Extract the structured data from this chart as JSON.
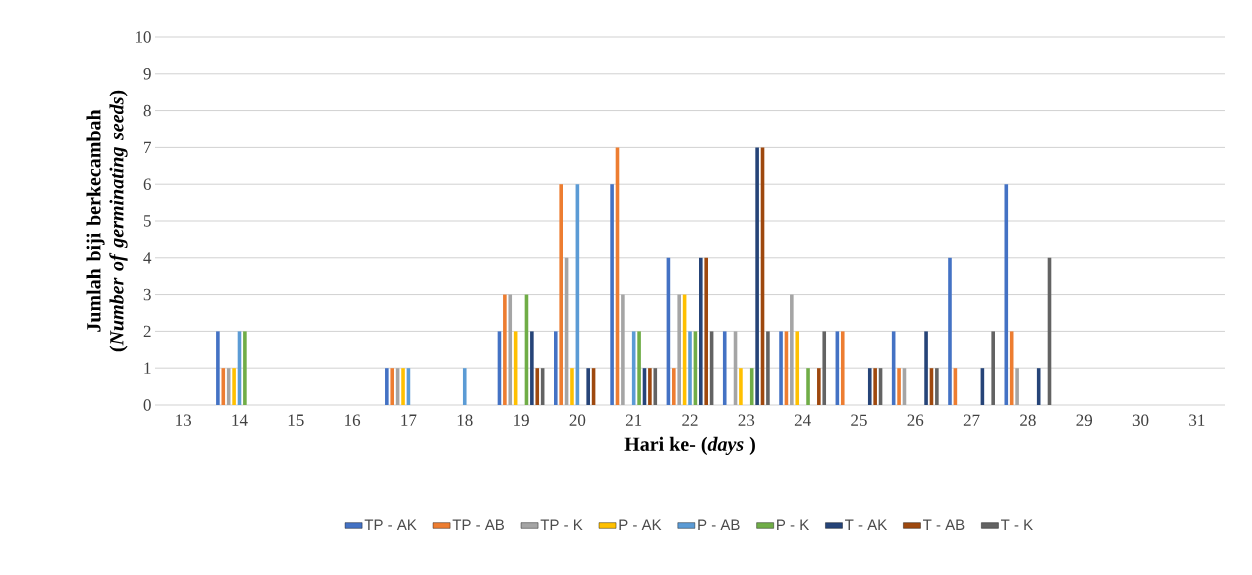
{
  "chart_data": {
    "type": "bar",
    "xlabel": "Hari ke- (*days* )",
    "ylabel": "Jumlah biji berkecambah (*Number of germinating seeds*)",
    "categories": [
      "13",
      "14",
      "15",
      "16",
      "17",
      "18",
      "19",
      "20",
      "21",
      "22",
      "23",
      "24",
      "25",
      "26",
      "27",
      "28",
      "29",
      "30",
      "31"
    ],
    "series": [
      {
        "name": "TP - AK",
        "color": "#4472c4",
        "values": [
          0,
          2,
          0,
          0,
          1,
          0,
          2,
          2,
          6,
          4,
          2,
          2,
          2,
          2,
          4,
          6,
          0,
          0,
          0
        ]
      },
      {
        "name": "TP - AB",
        "color": "#ed7d31",
        "values": [
          0,
          1,
          0,
          0,
          1,
          0,
          3,
          6,
          7,
          1,
          0,
          2,
          2,
          1,
          1,
          2,
          0,
          0,
          0
        ]
      },
      {
        "name": "TP - K",
        "color": "#a5a5a5",
        "values": [
          0,
          1,
          0,
          0,
          1,
          0,
          3,
          4,
          3,
          3,
          2,
          3,
          0,
          1,
          0,
          1,
          0,
          0,
          0
        ]
      },
      {
        "name": "P - AK",
        "color": "#ffc000",
        "values": [
          0,
          1,
          0,
          0,
          1,
          0,
          2,
          1,
          0,
          3,
          1,
          2,
          0,
          0,
          0,
          0,
          0,
          0,
          0
        ]
      },
      {
        "name": "P - AB",
        "color": "#5b9bd5",
        "values": [
          0,
          2,
          0,
          0,
          1,
          1,
          0,
          6,
          2,
          2,
          0,
          0,
          0,
          0,
          0,
          0,
          0,
          0,
          0
        ]
      },
      {
        "name": "P - K",
        "color": "#70ad47",
        "values": [
          0,
          2,
          0,
          0,
          0,
          0,
          3,
          0,
          2,
          2,
          1,
          1,
          0,
          0,
          0,
          0,
          0,
          0,
          0
        ]
      },
      {
        "name": "T - AK",
        "color": "#264478",
        "values": [
          0,
          0,
          0,
          0,
          0,
          0,
          2,
          1,
          1,
          4,
          7,
          0,
          1,
          2,
          1,
          1,
          0,
          0,
          0
        ]
      },
      {
        "name": "T - AB",
        "color": "#9e480e",
        "values": [
          0,
          0,
          0,
          0,
          0,
          0,
          1,
          1,
          1,
          4,
          7,
          1,
          1,
          1,
          0,
          0,
          0,
          0,
          0
        ]
      },
      {
        "name": "T - K",
        "color": "#636363",
        "values": [
          0,
          0,
          0,
          0,
          0,
          0,
          1,
          0,
          1,
          2,
          2,
          2,
          1,
          1,
          2,
          4,
          0,
          0,
          0
        ]
      }
    ],
    "ylim": [
      0,
      10
    ],
    "yticks": [
      0,
      1,
      2,
      3,
      4,
      5,
      6,
      7,
      8,
      9,
      10
    ],
    "grid": "y",
    "legend": "bottom"
  }
}
